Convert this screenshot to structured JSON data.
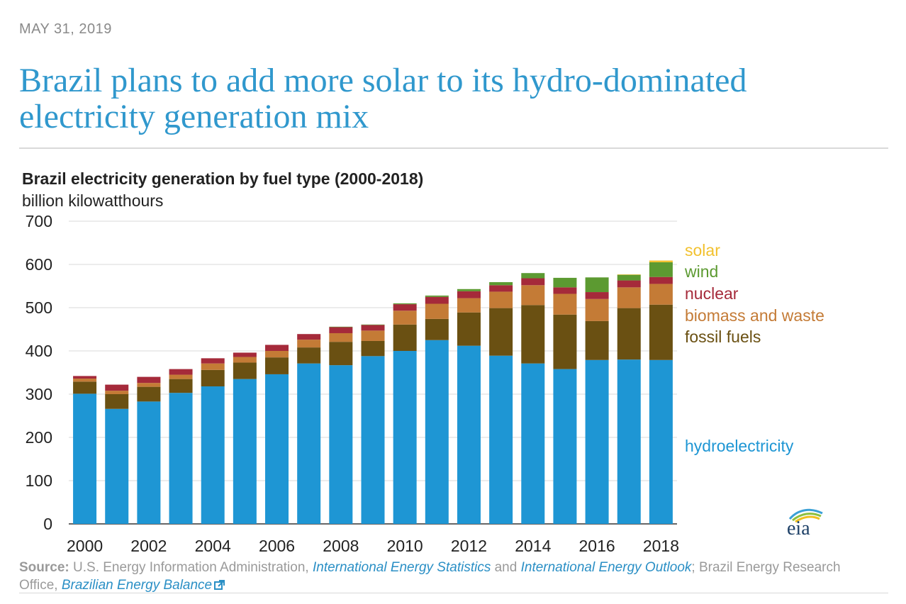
{
  "article": {
    "date": "MAY 31, 2019",
    "headline": "Brazil plans to add more solar to its hydro-dominated electricity generation mix"
  },
  "source": {
    "label": "Source:",
    "text1": " U.S. Energy Information Administration, ",
    "link1": "International Energy Statistics",
    "text2": " and ",
    "link2": "International Energy Outlook",
    "text3": "; Brazil Energy Research Office, ",
    "link3": "Brazilian Energy Balance"
  },
  "logo": {
    "text": "eia",
    "icon": "eia-logo-icon"
  },
  "chart_data": {
    "type": "bar",
    "stacked": true,
    "title": "Brazil electricity generation by fuel type (2000-2018)",
    "ylabel": "billion kilowatthours",
    "ylim": [
      0,
      700
    ],
    "yticks": [
      0,
      100,
      200,
      300,
      400,
      500,
      600,
      700
    ],
    "xtick_labels": [
      "2000",
      "2002",
      "2004",
      "2006",
      "2008",
      "2010",
      "2012",
      "2014",
      "2016",
      "2018"
    ],
    "grid": true,
    "legend_placement": "right",
    "categories": [
      "2000",
      "2001",
      "2002",
      "2003",
      "2004",
      "2005",
      "2006",
      "2007",
      "2008",
      "2009",
      "2010",
      "2011",
      "2012",
      "2013",
      "2014",
      "2015",
      "2016",
      "2017",
      "2018"
    ],
    "series": [
      {
        "name": "hydroelectricity",
        "color": "#1e96d4",
        "values": [
          301,
          266,
          283,
          303,
          318,
          335,
          346,
          371,
          367,
          388,
          400,
          425,
          412,
          389,
          371,
          358,
          379,
          380,
          379
        ]
      },
      {
        "name": "fossil fuels",
        "color": "#6a5012",
        "values": [
          28,
          34,
          34,
          32,
          38,
          38,
          39,
          37,
          54,
          35,
          61,
          49,
          77,
          110,
          135,
          126,
          90,
          119,
          128
        ]
      },
      {
        "name": "biomass and waste",
        "color": "#c47b36",
        "values": [
          7,
          8,
          9,
          10,
          15,
          13,
          15,
          18,
          20,
          24,
          32,
          35,
          33,
          38,
          46,
          48,
          51,
          48,
          48
        ]
      },
      {
        "name": "nuclear",
        "color": "#a52a3a",
        "values": [
          6,
          14,
          14,
          13,
          12,
          10,
          14,
          13,
          14,
          13,
          15,
          16,
          16,
          15,
          16,
          15,
          16,
          16,
          16
        ]
      },
      {
        "name": "wind",
        "color": "#5c9a31",
        "values": [
          0,
          0,
          0,
          0,
          0,
          0,
          0,
          0,
          1,
          1,
          2,
          3,
          5,
          7,
          12,
          22,
          34,
          13,
          34
        ]
      },
      {
        "name": "solar",
        "color": "#f2c12e",
        "values": [
          0,
          0,
          0,
          0,
          0,
          0,
          0,
          0,
          0,
          0,
          0,
          0,
          0,
          0,
          0,
          0,
          0,
          1,
          4
        ]
      }
    ],
    "legend_order": [
      "solar",
      "wind",
      "nuclear",
      "biomass and waste",
      "fossil fuels",
      "hydroelectricity"
    ]
  }
}
